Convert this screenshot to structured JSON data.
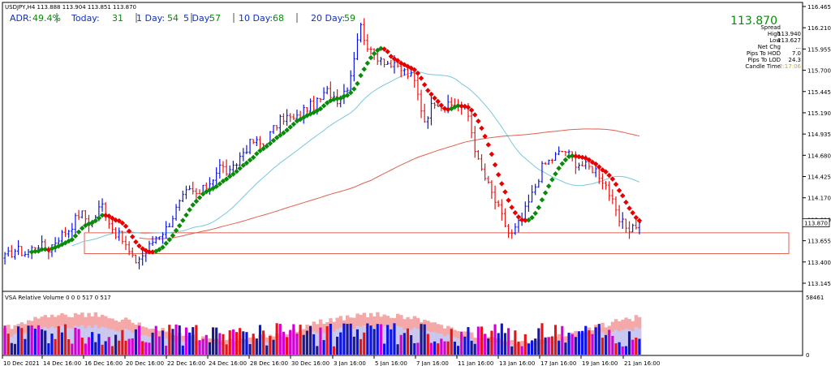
{
  "window": {
    "title": "USDJPY,H4  113.888 113.904 113.851 113.870"
  },
  "adr": {
    "items": [
      {
        "label": "ADR:",
        "value": "49.4%"
      },
      {
        "label": "Today:",
        "value": "31"
      },
      {
        "label": "1 Day:",
        "value": "54"
      },
      {
        "label": "5 Day:",
        "value": "57"
      },
      {
        "label": "10 Day:",
        "value": "68"
      },
      {
        "label": "20 Day:",
        "value": "59"
      }
    ]
  },
  "info_panel": {
    "price": "113.870",
    "rows": [
      {
        "label": "Spread",
        "value": ""
      },
      {
        "label": "High",
        "value": "113.940"
      },
      {
        "label": "Low",
        "value": "113.627"
      },
      {
        "label": "Net Chg",
        "value": "..."
      },
      {
        "label": "Pips To HOD",
        "value": "7.0"
      },
      {
        "label": "Pips To LOD",
        "value": "24.3"
      },
      {
        "label": "Candle Time",
        "value": "2:17:06"
      }
    ]
  },
  "colors": {
    "bull": "#0a14e6",
    "bear": "#e61414",
    "ma_up": "#0a8a0a",
    "ma_down": "#e60000",
    "ma_cyan": "#78c8dc",
    "ma_slow": "#e06050",
    "zone": "#e06050",
    "adr_label": "#1030c0",
    "adr_value": "#0a8a0a"
  },
  "volume_panel": {
    "title": "VSA Relative Volume 0 0 0 517 0 517",
    "scale_top": "58461",
    "scale_bottom": "0"
  },
  "chart_data": {
    "type": "candlestick",
    "symbol": "USDJPY",
    "timeframe": "H4",
    "current_price": 113.87,
    "ylim": [
      113.145,
      116.465
    ],
    "yticks": [
      "116.465",
      "116.210",
      "115.955",
      "115.700",
      "115.445",
      "115.190",
      "114.935",
      "114.680",
      "114.425",
      "114.170",
      "113.910",
      "113.655",
      "113.400",
      "113.145"
    ],
    "xticks": [
      "10 Dec 2021",
      "14 Dec 16:00",
      "16 Dec 16:00",
      "20 Dec 16:00",
      "22 Dec 16:00",
      "24 Dec 16:00",
      "28 Dec 16:00",
      "30 Dec 16:00",
      "3 Jan 16:00",
      "5 Jan 16:00",
      "7 Jan 16:00",
      "11 Jan 16:00",
      "13 Jan 16:00",
      "17 Jan 16:00",
      "19 Jan 16:00",
      "21 Jan 16:00"
    ],
    "price_anchors": [
      113.45,
      113.55,
      113.5,
      113.62,
      113.55,
      113.7,
      113.8,
      114.0,
      113.85,
      114.1,
      113.8,
      113.65,
      113.4,
      113.5,
      113.7,
      113.8,
      114.05,
      114.25,
      114.2,
      114.35,
      114.55,
      114.45,
      114.7,
      114.85,
      114.8,
      115.0,
      115.15,
      115.1,
      115.25,
      115.3,
      115.45,
      115.35,
      115.55,
      116.25,
      115.9,
      115.85,
      115.75,
      115.7,
      115.6,
      115.1,
      115.35,
      115.25,
      115.3,
      115.2,
      114.6,
      114.3,
      114.0,
      113.7,
      113.9,
      114.2,
      114.55,
      114.65,
      114.75,
      114.6,
      114.55,
      114.5,
      114.3,
      113.9,
      113.8,
      113.87
    ],
    "zone": {
      "top": 113.75,
      "bottom": 113.5
    },
    "series": [
      {
        "name": "",
        "kind": "ma-signal"
      },
      {
        "name": "",
        "kind": "ma-cyan"
      },
      {
        "name": "",
        "kind": "ma-slow"
      }
    ],
    "volume": {
      "ylim": [
        0,
        58461
      ]
    }
  }
}
